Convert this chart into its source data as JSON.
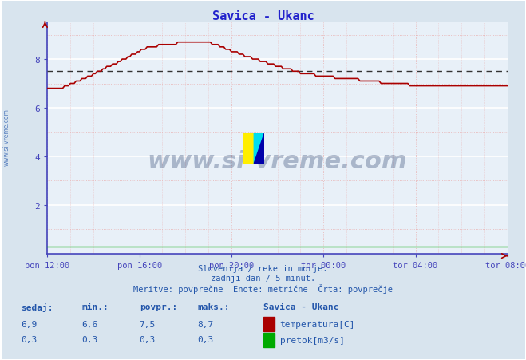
{
  "title": "Savica - Ukanc",
  "bg_color": "#d8e4ee",
  "plot_bg_color": "#e8f0f8",
  "grid_white_color": "#ffffff",
  "grid_pink_color": "#e8b0b0",
  "title_color": "#2222cc",
  "axis_color": "#4444bb",
  "text_color": "#2255aa",
  "temp_color": "#aa0000",
  "pretok_color": "#00aa00",
  "avg_line_color": "#333333",
  "xlabel_color": "#4444bb",
  "x_labels": [
    "pon 12:00",
    "pon 16:00",
    "pon 20:00",
    "tor 00:00",
    "tor 04:00",
    "tor 08:00"
  ],
  "x_ticks_pos": [
    0,
    48,
    96,
    144,
    192,
    240
  ],
  "x_total_points": 241,
  "ylim": [
    0,
    9.5
  ],
  "yticks": [
    2,
    4,
    6,
    8
  ],
  "avg_temp": 7.5,
  "stats_sedaj": 6.9,
  "stats_min": 6.6,
  "stats_povpr": 7.5,
  "stats_maks": 8.7,
  "pretok_sedaj": 0.3,
  "pretok_min": 0.3,
  "pretok_povpr": 0.3,
  "pretok_maks": 0.3,
  "footer_line1": "Slovenija / reke in morje.",
  "footer_line2": "zadnji dan / 5 minut.",
  "footer_line3": "Meritve: povprečne  Enote: metrične  Črta: povprečje",
  "watermark": "www.si-vreme.com",
  "legend_title": "Savica - Ukanc",
  "legend_temp": "temperatura[C]",
  "legend_pretok": "pretok[m3/s]",
  "stats_labels": [
    "sedaj:",
    "min.:",
    "povpr.:",
    "maks.:"
  ]
}
